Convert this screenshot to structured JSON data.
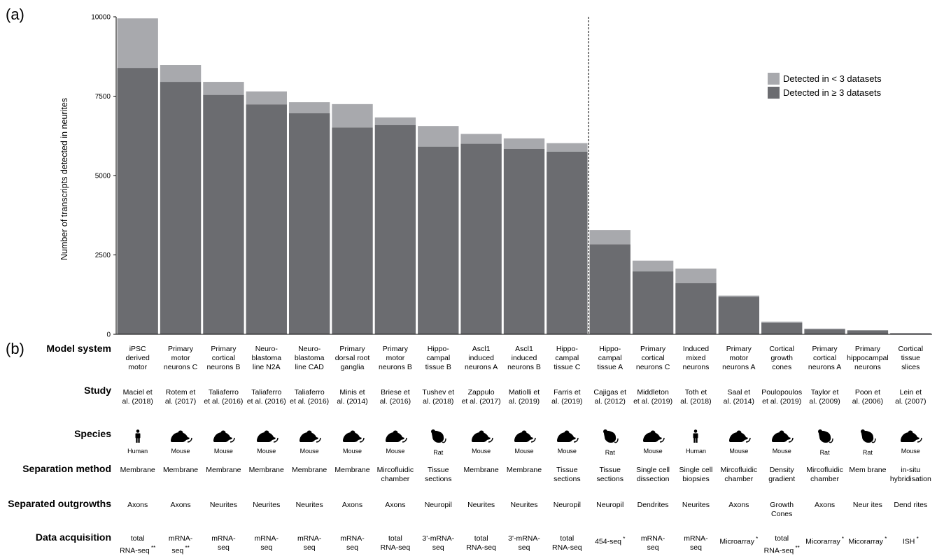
{
  "panel_labels": {
    "a": "(a)",
    "b": "(b)"
  },
  "chart_data": {
    "type": "bar",
    "stacked": true,
    "ylabel": "Number of transcripts detected in neurites",
    "ylim": [
      0,
      10000
    ],
    "y_ticks": [
      "0",
      "2500",
      "5000",
      "7500",
      "10000"
    ],
    "y_tick_values": [
      0,
      2500,
      5000,
      7500,
      10000
    ],
    "divider_after_index": 10,
    "legend_position": "top-right",
    "colors": {
      "ge3": "#6b6c70",
      "lt3": "#a8a9ad"
    },
    "series": [
      {
        "name": "Detected in < 3 datasets",
        "key": "lt3"
      },
      {
        "name": "Detected in ≥ 3 datasets",
        "key": "ge3"
      }
    ],
    "values_ge3": [
      8390,
      7950,
      7540,
      7240,
      6960,
      6510,
      6590,
      5910,
      6000,
      5840,
      5750,
      2830,
      1980,
      1610,
      1180,
      360,
      160,
      120,
      30
    ],
    "totals": [
      9950,
      8480,
      7950,
      7650,
      7310,
      7250,
      6830,
      6560,
      6310,
      6170,
      6020,
      3280,
      2320,
      2070,
      1220,
      400,
      180,
      130,
      40
    ]
  },
  "rows": {
    "model_system": {
      "label": "Model system",
      "values": [
        "iPSC\nderived\nmotor",
        "Primary\nmotor\nneurons C",
        "Primary\ncortical\nneurons B",
        "Neuro-\nblastoma\nline N2A",
        "Neuro-\nblastoma\nline CAD",
        "Primary\ndorsal root\nganglia",
        "Primary\nmotor\nneurons B",
        "Hippo-\ncampal\ntissue B",
        "Ascl1\ninduced\nneurons A",
        "Ascl1\ninduced\nneurons B",
        "Hippo-\ncampal\ntissue C",
        "Hippo-\ncampal\ntissue A",
        "Primary\ncortical\nneurons C",
        "Induced\nmixed\nneurons",
        "Primary\nmotor\nneurons A",
        "Cortical\ngrowth\ncones",
        "Primary\ncortical\nneurons A",
        "Primary\nhippocampal\nneurons",
        "Cortical\ntissue\nslices"
      ]
    },
    "study": {
      "label": "Study",
      "values": [
        "Maciel et\nal. (2018)",
        "Rotem et\nal. (2017)",
        "Taliaferro\net al. (2016)",
        "Taliaferro\net al. (2016)",
        "Taliaferro\net al. (2016)",
        "Minis et\nal. (2014)",
        "Briese et\nal. (2016)",
        "Tushev et\nal. (2018)",
        "Zappulo\net al. (2017)",
        "Matiolli et\nal. (2019)",
        "Farris et\nal. (2019)",
        "Cajigas et\nal. (2012)",
        "Middleton\net al. (2019)",
        "Toth et\nal. (2018)",
        "Saal et\nal. (2014)",
        "Poulopoulos\net al. (2019)",
        "Taylor et\nal. (2009)",
        "Poon et\nal. (2006)",
        "Lein et\nal. (2007)"
      ]
    },
    "species": {
      "label": "Species",
      "values": [
        "Human",
        "Mouse",
        "Mouse",
        "Mouse",
        "Mouse",
        "Mouse",
        "Mouse",
        "Rat",
        "Mouse",
        "Mouse",
        "Mouse",
        "Rat",
        "Mouse",
        "Human",
        "Mouse",
        "Mouse",
        "Rat",
        "Rat",
        "Mouse"
      ],
      "icons": [
        "human-icon",
        "mouse-icon",
        "mouse-icon",
        "mouse-icon",
        "mouse-icon",
        "mouse-icon",
        "mouse-icon",
        "rat-icon",
        "mouse-icon",
        "mouse-icon",
        "mouse-icon",
        "rat-icon",
        "mouse-icon",
        "human-icon",
        "mouse-icon",
        "mouse-icon",
        "rat-icon",
        "rat-icon",
        "mouse-icon"
      ]
    },
    "separation_method": {
      "label": "Separation method",
      "values": [
        "Membrane",
        "Membrane",
        "Membrane",
        "Membrane",
        "Membrane",
        "Membrane",
        "Mircofluidic\nchamber",
        "Tissue\nsections",
        "Membrane",
        "Membrane",
        "Tissue\nsections",
        "Tissue\nsections",
        "Single cell\ndissection",
        "Single cell\nbiopsies",
        "Mircofluidic\nchamber",
        "Density\ngradient",
        "Mircofluidic\nchamber",
        "Mem brane",
        "in-situ\nhybridisation"
      ]
    },
    "separated_outgrowths": {
      "label": "Separated outgrowths",
      "values": [
        "Axons",
        "Axons",
        "Neurites",
        "Neurites",
        "Neurites",
        "Axons",
        "Axons",
        "Neuropil",
        "Neurites",
        "Neurites",
        "Neuropil",
        "Neuropil",
        "Dendrites",
        "Neurites",
        "Axons",
        "Growth\nCones",
        "Axons",
        "Neur ites",
        "Dend rites"
      ]
    },
    "data_acquisition": {
      "label": "Data acquisition",
      "values": [
        "total\nRNA-seq",
        "mRNA-\nseq",
        "mRNA-\nseq",
        "mRNA-\nseq",
        "mRNA-\nseq",
        "mRNA-\nseq",
        "total\nRNA-seq",
        "3'-mRNA-\nseq",
        "total\nRNA-seq",
        "3'-mRNA-\nseq",
        "total\nRNA-seq",
        "454-seq",
        "mRNA-\nseq",
        "mRNA-\nseq",
        "Microarray",
        "total\nRNA-seq",
        "Micorarray",
        "Micorarray",
        "ISH"
      ],
      "marks": [
        "**",
        "**",
        "",
        "",
        "",
        "",
        "",
        "",
        "",
        "",
        "",
        "*",
        "",
        "",
        "*",
        "**",
        "*",
        "*",
        "*"
      ]
    }
  }
}
